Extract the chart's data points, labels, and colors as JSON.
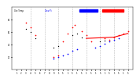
{
  "background_color": "#ffffff",
  "grid_color": "#bbbbbb",
  "temp_color": "#ff0000",
  "dew_color": "#0000ff",
  "other_color": "#000000",
  "legend_label_outtemp": "Out Temp",
  "legend_label_dewpt": "Dew Pt",
  "legend_blue_color": "#0000ff",
  "legend_red_color": "#ff0000",
  "legend_orange_color": "#ff6600",
  "temp_dots": [
    [
      3,
      75
    ],
    [
      4,
      68
    ],
    [
      5,
      55
    ],
    [
      9,
      20
    ],
    [
      10,
      22
    ],
    [
      11,
      45
    ],
    [
      12,
      58
    ],
    [
      13,
      68
    ],
    [
      13.5,
      72
    ],
    [
      15,
      62
    ],
    [
      16,
      55
    ],
    [
      17,
      45
    ],
    [
      20,
      50
    ],
    [
      21,
      48
    ],
    [
      22,
      52
    ],
    [
      23,
      55
    ],
    [
      24,
      58
    ],
    [
      25,
      62
    ]
  ],
  "dew_dots": [
    [
      9,
      18
    ],
    [
      10,
      20
    ],
    [
      11,
      22
    ],
    [
      12,
      25
    ],
    [
      13,
      30
    ],
    [
      14,
      32
    ],
    [
      18,
      35
    ],
    [
      19,
      38
    ],
    [
      20,
      42
    ],
    [
      21,
      45
    ],
    [
      22,
      48
    ],
    [
      23,
      50
    ]
  ],
  "black_dots": [
    [
      3,
      65
    ],
    [
      4,
      60
    ],
    [
      5,
      50
    ],
    [
      9,
      35
    ],
    [
      10,
      38
    ],
    [
      13,
      55
    ],
    [
      14,
      58
    ],
    [
      15,
      52
    ],
    [
      19,
      45
    ],
    [
      20,
      47
    ]
  ],
  "red_line_segments": [
    [
      [
        16,
        50
      ],
      [
        22,
        52
      ]
    ],
    [
      [
        22,
        52
      ],
      [
        25,
        58
      ]
    ]
  ],
  "ylim": [
    0,
    100
  ],
  "xlim": [
    0,
    26
  ],
  "vgrid_positions": [
    4,
    7,
    10,
    13,
    16,
    19,
    22,
    25
  ],
  "xtick_positions": [
    1,
    2,
    3,
    4,
    5,
    6,
    7,
    8,
    9,
    10,
    11,
    12,
    13,
    14,
    15,
    16,
    17,
    18,
    19,
    20,
    21,
    22,
    23,
    24,
    25
  ],
  "xtick_labels": [
    "1",
    "2",
    "3",
    "4",
    "5",
    "6",
    "7",
    "8",
    "9",
    "1",
    "5",
    "1",
    "5",
    "1",
    "5",
    "1",
    "5",
    "1",
    "5",
    "1",
    "5",
    "1",
    "5",
    "1",
    "5"
  ]
}
